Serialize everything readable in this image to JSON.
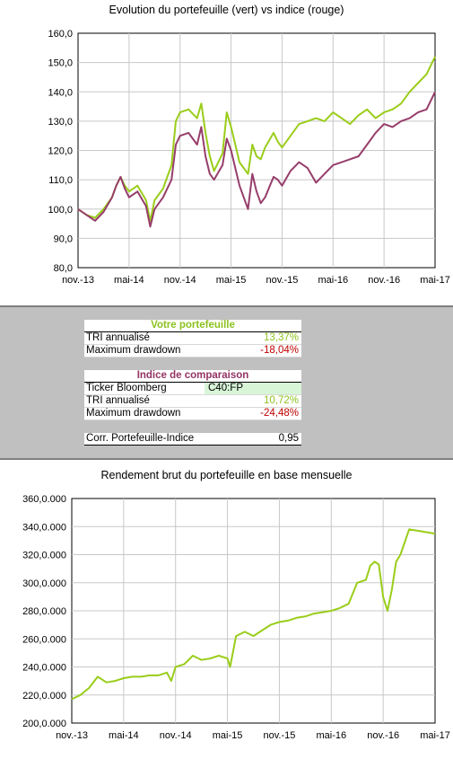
{
  "chart1": {
    "title": "Evolution du portefeuille (vert) vs indice (rouge)",
    "colors": {
      "portfolio": "#9acd1a",
      "index": "#963d6a",
      "grid": "#c8c8c8"
    }
  },
  "chart_data": [
    {
      "type": "line",
      "title": "Evolution du portefeuille (vert) vs indice (rouge)",
      "xlabel": "",
      "ylabel": "",
      "ylim": [
        80,
        160
      ],
      "yticks": [
        "80,0",
        "90,0",
        "100,0",
        "110,0",
        "120,0",
        "130,0",
        "140,0",
        "150,0",
        "160,0"
      ],
      "xticks": [
        "nov.-13",
        "mai-14",
        "nov.-14",
        "mai-15",
        "nov.-15",
        "mai-16",
        "nov.-16",
        "mai-17"
      ],
      "grid": true,
      "series": [
        {
          "color": "#9acd1a",
          "x": [
            0,
            1,
            2,
            3,
            4,
            4.5,
            5,
            5.5,
            6,
            7,
            8,
            8.5,
            9,
            10,
            11,
            11.5,
            12,
            13,
            14,
            14.5,
            15,
            15.5,
            16,
            17,
            17.5,
            18,
            19,
            20,
            20.5,
            21,
            21.5,
            22,
            23,
            23.5,
            24,
            25,
            26,
            27,
            28,
            29,
            30,
            31,
            32,
            33,
            34,
            35,
            36,
            37,
            38,
            39,
            40,
            41,
            42
          ],
          "y": [
            100,
            98,
            97,
            100,
            104,
            108,
            111,
            108,
            106,
            108,
            103,
            96,
            103,
            107,
            115,
            130,
            133,
            134,
            131,
            136,
            126,
            118,
            113,
            119,
            133,
            128,
            116,
            112,
            122,
            118,
            117,
            121,
            126,
            123,
            121,
            125,
            129,
            130,
            131,
            130,
            133,
            131,
            129,
            132,
            134,
            131,
            133,
            134,
            136,
            140,
            143,
            146,
            152
          ]
        },
        {
          "color": "#963d6a",
          "x": [
            0,
            1,
            2,
            3,
            4,
            4.5,
            5,
            5.5,
            6,
            7,
            8,
            8.5,
            9,
            10,
            11,
            11.5,
            12,
            13,
            14,
            14.5,
            15,
            15.5,
            16,
            17,
            17.5,
            18,
            19,
            20,
            20.5,
            21,
            21.5,
            22,
            23,
            23.5,
            24,
            25,
            26,
            27,
            28,
            29,
            30,
            31,
            32,
            33,
            34,
            35,
            36,
            37,
            38,
            39,
            40,
            41,
            42
          ],
          "y": [
            100,
            98,
            96,
            99,
            104,
            108,
            111,
            107,
            104,
            106,
            101,
            94,
            100,
            104,
            110,
            122,
            125,
            126,
            122,
            128,
            118,
            112,
            110,
            115,
            124,
            120,
            108,
            100,
            112,
            106,
            102,
            104,
            111,
            110,
            108,
            113,
            116,
            114,
            109,
            112,
            115,
            116,
            117,
            118,
            122,
            126,
            129,
            128,
            130,
            131,
            133,
            134,
            140
          ]
        }
      ]
    },
    {
      "type": "line",
      "title": "Rendement brut du portefeuille en base mensuelle",
      "xlabel": "",
      "ylabel": "",
      "ylim": [
        200,
        360
      ],
      "yticks": [
        "200,0.000",
        "220,0.000",
        "240,0.000",
        "260,0.000",
        "280,0.000",
        "300,0.000",
        "320,0.000",
        "340,0.000",
        "360,0.000"
      ],
      "xticks": [
        "nov.-13",
        "mai-14",
        "nov.-14",
        "mai-15",
        "nov.-15",
        "mai-16",
        "nov.-16",
        "mai-17"
      ],
      "grid": true,
      "series": [
        {
          "color": "#9acd1a",
          "x": [
            0,
            1,
            2,
            3,
            4,
            5,
            6,
            7,
            8,
            9,
            10,
            11,
            11.5,
            12,
            13,
            14,
            15,
            16,
            17,
            18,
            18.3,
            19,
            20,
            21,
            22,
            23,
            24,
            25,
            26,
            27,
            28,
            29,
            30,
            31,
            32,
            33,
            34,
            34.5,
            35,
            35.5,
            36,
            36.5,
            37,
            37.5,
            38,
            39,
            40,
            41,
            42
          ],
          "y": [
            217,
            220,
            225,
            233,
            229,
            230,
            232,
            233,
            233,
            234,
            234,
            236,
            230,
            240,
            242,
            248,
            245,
            246,
            248,
            246,
            240,
            262,
            265,
            262,
            266,
            270,
            272,
            273,
            275,
            276,
            278,
            279,
            280,
            282,
            285,
            300,
            302,
            312,
            315,
            313,
            290,
            280,
            295,
            315,
            320,
            338,
            337,
            336,
            335
          ]
        }
      ]
    }
  ],
  "stats": {
    "portfolio_header": "Votre portefeuille",
    "tri_label": "TRI annualisé",
    "tri_value": "13,37%",
    "mdd_label": "Maximum drawdown",
    "mdd_value": "-18,04%",
    "index_header": "Indice de comparaison",
    "ticker_label": "Ticker Bloomberg",
    "ticker_value": "C40:FP",
    "index_tri_label": "TRI annualisé",
    "index_tri_value": "10,72%",
    "index_mdd_label": "Maximum drawdown",
    "index_mdd_value": "-24,48%",
    "corr_label": "Corr. Portefeuille-Indice",
    "corr_value": "0,95"
  },
  "chart2": {
    "title": "Rendement brut du portefeuille en base mensuelle"
  }
}
